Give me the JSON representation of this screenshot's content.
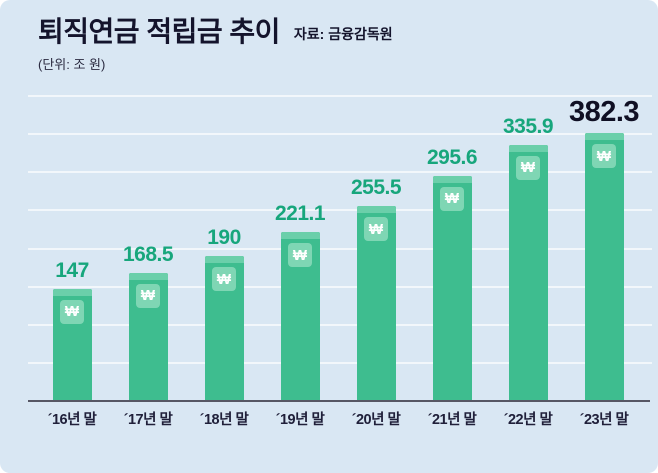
{
  "header": {
    "title": "퇴직연금 적립금 추이",
    "source": "자료: 금융감독원",
    "unit": "(단위: 조 원)"
  },
  "chart_data": {
    "type": "bar",
    "title": "퇴직연금 적립금 추이",
    "subtitle": "자료: 금융감독원",
    "unit_label": "(단위: 조 원)",
    "categories": [
      "´16년 말",
      "´17년 말",
      "´18년 말",
      "´19년 말",
      "´20년 말",
      "´21년 말",
      "´22년 말",
      "´23년 말"
    ],
    "values": [
      147,
      168.5,
      190,
      221.1,
      255.5,
      295.6,
      335.9,
      382.3
    ],
    "value_labels": [
      "147",
      "168.5",
      "190",
      "221.1",
      "255.5",
      "295.6",
      "335.9",
      "382.3"
    ],
    "xlabel": "",
    "ylabel": "",
    "ylim": [
      0,
      400
    ],
    "grid": true,
    "grid_step": 50,
    "legend": false,
    "emphasized_index": 7,
    "won_symbol": "₩",
    "colors": {
      "background": "#d9e7f3",
      "bar": "#3ebd8f",
      "bar_cap": "#6bcfaa",
      "badge": "#7fd6b4",
      "value_label": "#17a67c",
      "emphasized_label": "#101024",
      "text_dark": "#14142c",
      "axis_line": "#565764"
    }
  }
}
